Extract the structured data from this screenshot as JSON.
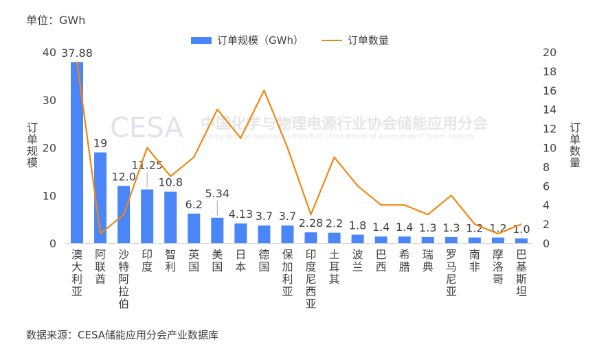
{
  "unit_label": "单位：GWh",
  "source": "数据来源：CESA储能应用分会产业数据库",
  "watermark": {
    "logo": "CESA",
    "cn": "中国化学与物理电源行业协会储能应用分会",
    "en": "Energy Storage Application Branch of China Industrial Association of Power Sources"
  },
  "chart_data": {
    "type": "bar+line",
    "categories": [
      "澳大利亚",
      "阿联酋",
      "沙特阿拉伯",
      "印度",
      "智利",
      "英国",
      "美国",
      "日本",
      "德国",
      "保加利亚",
      "印度尼西亚",
      "土耳其",
      "波兰",
      "巴西",
      "希腊",
      "瑞典",
      "罗马尼亚",
      "南非",
      "摩洛哥",
      "巴基斯坦"
    ],
    "series": [
      {
        "name": "订单规模（GWh）",
        "type": "bar",
        "axis": "left",
        "color": "#4a86f7",
        "values": [
          37.88,
          19,
          12.0,
          11.25,
          10.8,
          6.2,
          5.34,
          4.13,
          3.7,
          3.7,
          2.28,
          2.2,
          1.8,
          1.4,
          1.4,
          1.3,
          1.3,
          1.2,
          1.2,
          1.0
        ],
        "labels": [
          "37.88",
          "19",
          "12.0",
          "11.25",
          "10.8",
          "6.2",
          "5.34",
          "4.13",
          "3.7",
          "3.7",
          "2.28",
          "2.2",
          "1.8",
          "1.4",
          "1.4",
          "1.3",
          "1.3",
          "1.2",
          "1.2",
          "1.0"
        ]
      },
      {
        "name": "订单数量",
        "type": "line",
        "axis": "right",
        "color": "#f0870f",
        "values": [
          19,
          1,
          3,
          10,
          7,
          9,
          14,
          11,
          16,
          10,
          3,
          9,
          6,
          4,
          4,
          3,
          5,
          2,
          1,
          2
        ]
      }
    ],
    "ylabel_left": "订单规模",
    "ylabel_right": "订单数量",
    "ylim_left": [
      0,
      40
    ],
    "yticks_left": [
      "0",
      "10",
      "20",
      "30",
      "40"
    ],
    "ylim_right": [
      0,
      20
    ],
    "yticks_right": [
      "0",
      "2",
      "4",
      "6",
      "8",
      "10",
      "12",
      "14",
      "16",
      "18",
      "20"
    ],
    "legend": "top",
    "grid": false
  }
}
